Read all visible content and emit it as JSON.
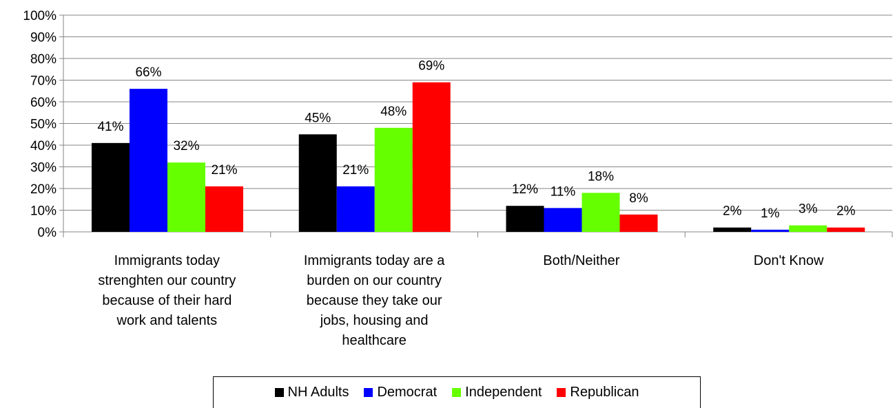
{
  "chart_data": {
    "type": "bar",
    "categories": [
      [
        "Immigrants today",
        "strenghten our country",
        "because of their hard",
        "work and talents"
      ],
      [
        "Immigrants today are a",
        "burden on our country",
        "because they take our",
        "jobs, housing and",
        "healthcare"
      ],
      [
        "Both/Neither"
      ],
      [
        "Don't Know"
      ]
    ],
    "series": [
      {
        "name": "NH Adults",
        "color": "#000000",
        "values": [
          41,
          45,
          12,
          2
        ],
        "labels": [
          "41%",
          "45%",
          "12%",
          "2%"
        ]
      },
      {
        "name": "Democrat",
        "color": "#0000FF",
        "values": [
          66,
          21,
          11,
          1
        ],
        "labels": [
          "66%",
          "21%",
          "11%",
          "1%"
        ]
      },
      {
        "name": "Independent",
        "color": "#66FF00",
        "values": [
          32,
          48,
          18,
          3
        ],
        "labels": [
          "32%",
          "48%",
          "18%",
          "3%"
        ]
      },
      {
        "name": "Republican",
        "color": "#FF0000",
        "values": [
          21,
          69,
          8,
          2
        ],
        "labels": [
          "21%",
          "69%",
          "8%",
          "2%"
        ]
      }
    ],
    "y_ticks": [
      "0%",
      "10%",
      "20%",
      "30%",
      "40%",
      "50%",
      "60%",
      "70%",
      "80%",
      "90%",
      "100%"
    ],
    "ylim": [
      0,
      100
    ],
    "grid": true,
    "legend_position": "bottom",
    "title": "",
    "xlabel": "",
    "ylabel": ""
  }
}
